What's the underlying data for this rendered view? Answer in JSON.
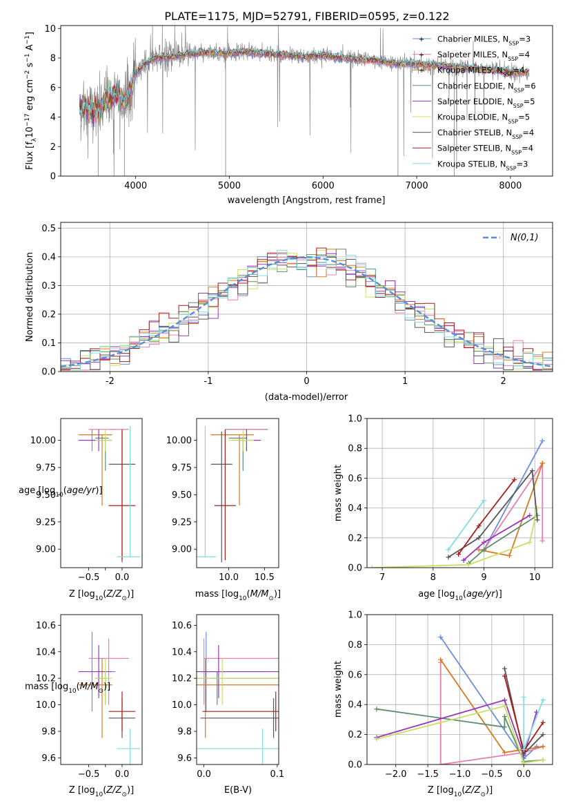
{
  "title": "PLATE=1175, MJD=52791, FIBERID=0595, z=0.122",
  "colors": {
    "grid": "#b0b0b0",
    "data_spectrum": "#888888",
    "normal_curve": "#5b8ed6"
  },
  "models": [
    {
      "label": "Chabrier MILES, N_SSP=3",
      "lib": "Chabrier MILES",
      "nssp": "3",
      "color": "#6a8ed8",
      "logZ": -0.45,
      "logZ_err": [
        -0.3,
        0.35
      ],
      "age": 10.1,
      "age_err": [
        0.2,
        0.0
      ],
      "mass": 10.25,
      "mass_err": [
        0.3,
        0.3
      ],
      "ebv": 0.003,
      "ebv_err": [
        0.03,
        0.08
      ]
    },
    {
      "label": "Salpeter MILES, N_SSP=4",
      "lib": "Salpeter MILES",
      "nssp": "4",
      "color": "#e67fb0",
      "logZ": -0.2,
      "logZ_err": [
        0.3,
        0.3
      ],
      "age": 10.1,
      "age_err": [
        0.0,
        0.0
      ],
      "mass": 10.35,
      "mass_err": [
        0.35,
        0.15
      ],
      "ebv": 0.0,
      "ebv_err": [
        0.0,
        0.23
      ],
      "mass_from": 10.1,
      "mass_to": 10.65
    },
    {
      "label": "Kroupa MILES, N_SSP=4",
      "lib": "Kroupa MILES",
      "nssp": "4",
      "color": "#d87820",
      "logZ": -0.3,
      "logZ_err": [
        0.35,
        0.15
      ],
      "age": 10.05,
      "age_err": [
        0.65,
        0.0
      ],
      "mass": 10.15,
      "mass_err": [
        0.4,
        0.2
      ],
      "ebv": 0.002,
      "ebv_err": [
        0.1,
        0.1
      ]
    },
    {
      "label": "Chabrier ELODIE, N_SSP=6",
      "lib": "Chabrier ELODIE",
      "nssp": "6",
      "color": "#5a8f6a",
      "logZ": -0.25,
      "logZ_err": [
        0.15,
        0.05
      ],
      "age": 10.02,
      "age_err": [
        0.3,
        0.0
      ],
      "mass": 10.2,
      "mass_err": [
        0.2,
        0.05
      ],
      "ebv": 0.018,
      "ebv_err": [
        0.1,
        0.1
      ]
    },
    {
      "label": "Salpeter ELODIE, N_SSP=5",
      "lib": "Salpeter ELODIE",
      "nssp": "5",
      "color": "#9933bb",
      "logZ": -0.35,
      "logZ_err": [
        0.3,
        0.2
      ],
      "age": 10.0,
      "age_err": [
        0.1,
        0.1
      ],
      "mass": 10.25,
      "mass_err": [
        0.2,
        0.2
      ],
      "ebv": 0.02,
      "ebv_err": [
        0.1,
        0.1
      ]
    },
    {
      "label": "Kroupa ELODIE, N_SSP=5",
      "lib": "Kroupa ELODIE",
      "nssp": "5",
      "color": "#c8e060",
      "logZ": -0.25,
      "logZ_err": [
        0.15,
        0.1
      ],
      "age": 10.0,
      "age_err": [
        0.1,
        0.1
      ],
      "mass": 10.2,
      "mass_err": [
        0.2,
        0.15
      ],
      "ebv": 0.025,
      "ebv_err": [
        0.1,
        0.1
      ]
    },
    {
      "label": "Chabrier STELIB, N_SSP=4",
      "lib": "Chabrier STELIB",
      "nssp": "4",
      "color": "#555555",
      "logZ": 0.0,
      "logZ_err": [
        0.2,
        0.2
      ],
      "age": 9.78,
      "age_err": [
        0.9,
        0.3
      ],
      "mass": 9.9,
      "mass_err": [
        0.15,
        0.15
      ],
      "ebv": 0.095,
      "ebv_err": [
        0.1,
        0.1
      ]
    },
    {
      "label": "Salpeter STELIB, N_SSP=4",
      "lib": "Salpeter STELIB",
      "nssp": "4",
      "color": "#aa1a1a",
      "logZ": 0.0,
      "logZ_err": [
        0.2,
        0.2
      ],
      "age": 9.4,
      "age_err": [
        0.5,
        0.7
      ],
      "mass": 9.95,
      "mass_err": [
        0.15,
        0.15
      ],
      "ebv": 0.098,
      "ebv_err": [
        0.1,
        0.1
      ]
    },
    {
      "label": "Kroupa STELIB, N_SSP=3",
      "lib": "Kroupa STELIB",
      "nssp": "3",
      "color": "#7fdde0",
      "logZ": 0.12,
      "logZ_err": [
        0.2,
        0.15
      ],
      "age": 8.93,
      "age_err": [
        0.0,
        1.2
      ],
      "mass": 9.67,
      "mass_err": [
        0.15,
        0.15
      ],
      "ebv": 0.08,
      "ebv_err": [
        0.1,
        0.1
      ]
    }
  ],
  "chart_data": [
    {
      "type": "line",
      "title": "PLATE=1175, MJD=52791, FIBERID=0595, z=0.122",
      "xlabel": "wavelength [Angstrom, rest frame]",
      "ylabel_main": "Flux [f",
      "ylabel_sub": "λ",
      "ylabel_rest": "10",
      "ylabel_exp1": "−17",
      "ylabel_mid": " erg cm",
      "ylabel_exp2": "−2",
      "ylabel_s": " s",
      "ylabel_exp3": "−1",
      "ylabel_tail": " A",
      "ylabel_exp4": "−1",
      "ylabel_end": "]",
      "xlim": [
        3200,
        8450
      ],
      "ylim": [
        0,
        10.2
      ],
      "xticks": [
        4000,
        5000,
        6000,
        7000,
        8000
      ],
      "yticks": [
        0,
        2,
        4,
        6,
        8,
        10
      ],
      "legend": "top-right",
      "continuum": [
        [
          3400,
          4.6
        ],
        [
          3600,
          4.3
        ],
        [
          3700,
          5.2
        ],
        [
          3800,
          5.5
        ],
        [
          3900,
          5.0
        ],
        [
          4000,
          7.0
        ],
        [
          4100,
          7.6
        ],
        [
          4200,
          8.0
        ],
        [
          4400,
          8.1
        ],
        [
          4600,
          8.3
        ],
        [
          4800,
          8.4
        ],
        [
          5000,
          8.3
        ],
        [
          5200,
          8.4
        ],
        [
          5400,
          8.3
        ],
        [
          5600,
          8.2
        ],
        [
          5800,
          8.1
        ],
        [
          6000,
          8.2
        ],
        [
          6200,
          8.0
        ],
        [
          6400,
          7.9
        ],
        [
          6600,
          7.8
        ],
        [
          6800,
          7.6
        ],
        [
          7000,
          7.6
        ],
        [
          7200,
          7.5
        ],
        [
          7400,
          7.4
        ],
        [
          7600,
          7.3
        ],
        [
          7800,
          7.2
        ],
        [
          8000,
          7.0
        ],
        [
          8200,
          7.0
        ]
      ]
    },
    {
      "type": "bar",
      "xlabel": "(data-model)/error",
      "ylabel": "Normed distribution",
      "xlim": [
        -2.5,
        2.5
      ],
      "ylim": [
        0,
        0.52
      ],
      "xticks": [
        -2,
        -1,
        0,
        1,
        2
      ],
      "yticks": [
        0.0,
        0.1,
        0.2,
        0.3,
        0.4,
        0.5
      ],
      "bin_width": 0.1,
      "legend_label": "N(0,1)",
      "grid": true
    },
    {
      "type": "scatter",
      "xlabel": "Z [log10(Z/Z⊙)]",
      "ylabel": "age  [log10(age/yr)]",
      "xlim": [
        -0.92,
        0.3
      ],
      "ylim": [
        8.83,
        10.2
      ],
      "xticks": [
        -0.5,
        -0.25,
        0.0
      ],
      "xticklabels": [
        "−0.5",
        "",
        "0.0"
      ],
      "yticks": [
        9.0,
        9.25,
        9.5,
        9.75,
        10.0
      ],
      "yticklabels": [
        "9.00",
        "9.25",
        "9.50",
        "9.75",
        "10.00"
      ]
    },
    {
      "type": "scatter",
      "xlabel": "mass [log10(M/M⊙)]",
      "xlim": [
        9.55,
        10.7
      ],
      "ylim": [
        8.83,
        10.2
      ],
      "xticks": [
        10.0,
        10.5
      ],
      "xticklabels": [
        "10.0",
        "10.5"
      ],
      "yticks": [
        9.0,
        9.25,
        9.5,
        9.75,
        10.0
      ],
      "yticklabels": [
        "9.00",
        "9.25",
        "9.50",
        "9.75",
        "10.00"
      ]
    },
    {
      "type": "line",
      "xlabel": "age  [log10(age/yr)]",
      "ylabel": "mass weight",
      "xlim": [
        6.7,
        10.35
      ],
      "ylim": [
        0,
        1.0
      ],
      "xticks": [
        7,
        8,
        9,
        10
      ],
      "yticks": [
        0.0,
        0.2,
        0.4,
        0.6,
        0.8,
        1.0
      ],
      "grid": true,
      "series": [
        {
          "color": "#6a8ed8",
          "points": [
            [
              9.0,
              0.12
            ],
            [
              10.15,
              0.85
            ]
          ]
        },
        {
          "color": "#e67fb0",
          "points": [
            [
              9.0,
              0.12
            ],
            [
              10.15,
              0.7
            ],
            [
              10.15,
              0.18
            ]
          ]
        },
        {
          "color": "#d87820",
          "points": [
            [
              8.9,
              0.12
            ],
            [
              9.5,
              0.08
            ],
            [
              10.15,
              0.7
            ]
          ]
        },
        {
          "color": "#5a8f6a",
          "points": [
            [
              8.7,
              0.03
            ],
            [
              9.0,
              0.12
            ],
            [
              10.05,
              0.35
            ]
          ]
        },
        {
          "color": "#9933bb",
          "points": [
            [
              8.6,
              0.05
            ],
            [
              9.0,
              0.17
            ],
            [
              9.9,
              0.35
            ]
          ]
        },
        {
          "color": "#c8e060",
          "points": [
            [
              6.8,
              0.0
            ],
            [
              8.7,
              0.02
            ],
            [
              9.9,
              0.17
            ],
            [
              10.05,
              0.4
            ]
          ]
        },
        {
          "color": "#555555",
          "points": [
            [
              8.3,
              0.07
            ],
            [
              8.9,
              0.2
            ],
            [
              9.95,
              0.65
            ],
            [
              10.05,
              0.32
            ]
          ]
        },
        {
          "color": "#aa1a1a",
          "points": [
            [
              8.5,
              0.09
            ],
            [
              8.9,
              0.28
            ],
            [
              9.6,
              0.59
            ]
          ]
        },
        {
          "color": "#7fdde0",
          "points": [
            [
              8.3,
              0.12
            ],
            [
              9.0,
              0.45
            ]
          ]
        }
      ]
    },
    {
      "type": "scatter",
      "xlabel": "Z [log10(Z/Z⊙)]",
      "ylabel": "mass [log10(M/M⊙)]",
      "xlim": [
        -0.92,
        0.3
      ],
      "ylim": [
        9.55,
        10.68
      ],
      "xticks": [
        -0.5,
        -0.25,
        0.0
      ],
      "xticklabels": [
        "−0.5",
        "",
        "0.0"
      ],
      "yticks": [
        9.6,
        9.8,
        10.0,
        10.2,
        10.4,
        10.6
      ],
      "yticklabels": [
        "9.6",
        "9.8",
        "10.0",
        "10.2",
        "10.4",
        "10.6"
      ]
    },
    {
      "type": "scatter",
      "xlabel": "E(B-V)",
      "xlim": [
        -0.01,
        0.102
      ],
      "ylim": [
        9.55,
        10.68
      ],
      "xticks": [
        0.0,
        0.1
      ],
      "xticklabels": [
        "0.0",
        "0.1"
      ],
      "yticks": [
        9.6,
        9.8,
        10.0,
        10.2,
        10.4,
        10.6
      ],
      "yticklabels": [
        "9.6",
        "9.8",
        "10.0",
        "10.2",
        "10.4",
        "10.6"
      ]
    },
    {
      "type": "line",
      "xlabel": "Z [log10(Z/Z⊙)]",
      "ylabel": "mass weight",
      "xlim": [
        -2.45,
        0.45
      ],
      "ylim": [
        0,
        1.0
      ],
      "xticks": [
        -2.0,
        -1.5,
        -1.0,
        -0.5,
        0.0
      ],
      "xticklabels": [
        "−2.0",
        "−1.5",
        "−1.0",
        "−0.5",
        "0.0"
      ],
      "yticks": [
        0.0,
        0.2,
        0.4,
        0.6,
        0.8,
        1.0
      ],
      "grid": true,
      "series": [
        {
          "color": "#6a8ed8",
          "points": [
            [
              -1.3,
              0.85
            ],
            [
              0.0,
              0.04
            ],
            [
              0.2,
              0.12
            ]
          ]
        },
        {
          "color": "#e67fb0",
          "points": [
            [
              -1.3,
              0.68
            ],
            [
              -1.3,
              0.0
            ],
            [
              0.0,
              0.08
            ],
            [
              0.3,
              0.12
            ]
          ]
        },
        {
          "color": "#d87820",
          "points": [
            [
              -1.3,
              0.7
            ],
            [
              -0.3,
              0.08
            ],
            [
              0.0,
              0.1
            ],
            [
              0.3,
              0.12
            ]
          ]
        },
        {
          "color": "#5a8f6a",
          "points": [
            [
              -2.3,
              0.37
            ],
            [
              -0.3,
              0.25
            ],
            [
              -0.3,
              0.32
            ],
            [
              0.0,
              0.02
            ],
            [
              0.3,
              0.03
            ]
          ]
        },
        {
          "color": "#9933bb",
          "points": [
            [
              -2.3,
              0.18
            ],
            [
              -0.3,
              0.43
            ],
            [
              0.0,
              0.06
            ],
            [
              0.2,
              0.35
            ]
          ]
        },
        {
          "color": "#c8e060",
          "points": [
            [
              -2.3,
              0.17
            ],
            [
              -0.3,
              0.39
            ],
            [
              0.0,
              0.01
            ],
            [
              0.3,
              0.03
            ]
          ]
        },
        {
          "color": "#555555",
          "points": [
            [
              -0.3,
              0.64
            ],
            [
              0.0,
              0.07
            ],
            [
              0.3,
              0.2
            ]
          ]
        },
        {
          "color": "#aa1a1a",
          "points": [
            [
              -0.3,
              0.59
            ],
            [
              0.0,
              0.09
            ],
            [
              0.3,
              0.28
            ]
          ]
        },
        {
          "color": "#7fdde0",
          "points": [
            [
              0.0,
              0.45
            ],
            [
              0.0,
              0.1
            ],
            [
              0.3,
              0.43
            ]
          ]
        }
      ]
    }
  ]
}
